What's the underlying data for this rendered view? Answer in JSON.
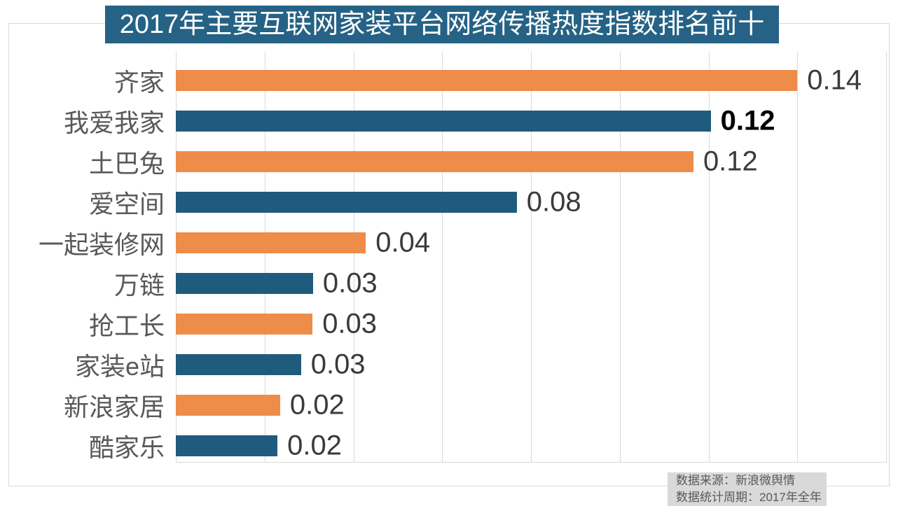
{
  "theme": {
    "background": "#ffffff",
    "title_bg": "#256285",
    "title_text": "#ffffff",
    "bar_orange": "#EE8C4A",
    "bar_blue": "#1F5B7C",
    "grid_color": "#d9d9d9",
    "frame_border": "#d9d9d9",
    "category_color": "#595959",
    "value_color": "#3a3a3a",
    "note_bg": "#d9d9d9",
    "note_text": "#595959"
  },
  "chart_data": {
    "type": "bar",
    "orientation": "horizontal",
    "title": "2017年主要互联网家装平台网络传播热度指数排名前十",
    "categories": [
      "齐家",
      "我爱我家",
      "土巴兔",
      "爱空间",
      "一起装修网",
      "万链",
      "抢工长",
      "家装e站",
      "新浪家居",
      "酷家乐"
    ],
    "values": [
      0.14,
      0.12,
      0.12,
      0.08,
      0.04,
      0.03,
      0.03,
      0.03,
      0.02,
      0.02
    ],
    "value_labels": [
      "0.14",
      "0.12",
      "0.12",
      "0.08",
      "0.04",
      "0.03",
      "0.03",
      "0.03",
      "0.02",
      "0.02"
    ],
    "values_precise": [
      0.14,
      0.1205,
      0.1166,
      0.0768,
      0.0428,
      0.0309,
      0.0308,
      0.0282,
      0.0235,
      0.0229
    ],
    "value_label_bold": [
      false,
      true,
      false,
      false,
      false,
      false,
      false,
      false,
      false,
      false
    ],
    "bar_colors": [
      "#EE8C4A",
      "#1F5B7C",
      "#EE8C4A",
      "#1F5B7C",
      "#EE8C4A",
      "#1F5B7C",
      "#EE8C4A",
      "#1F5B7C",
      "#EE8C4A",
      "#1F5B7C"
    ],
    "xlabel": "",
    "ylabel": "",
    "xlim": [
      0,
      0.16
    ],
    "gridline_step": 0.02,
    "grid": "vertical-only",
    "legend": "none",
    "data_labels": "outside-end"
  },
  "source_note": {
    "line1": "数据来源：新浪微舆情",
    "line2": "数据统计周期：2017年全年"
  }
}
